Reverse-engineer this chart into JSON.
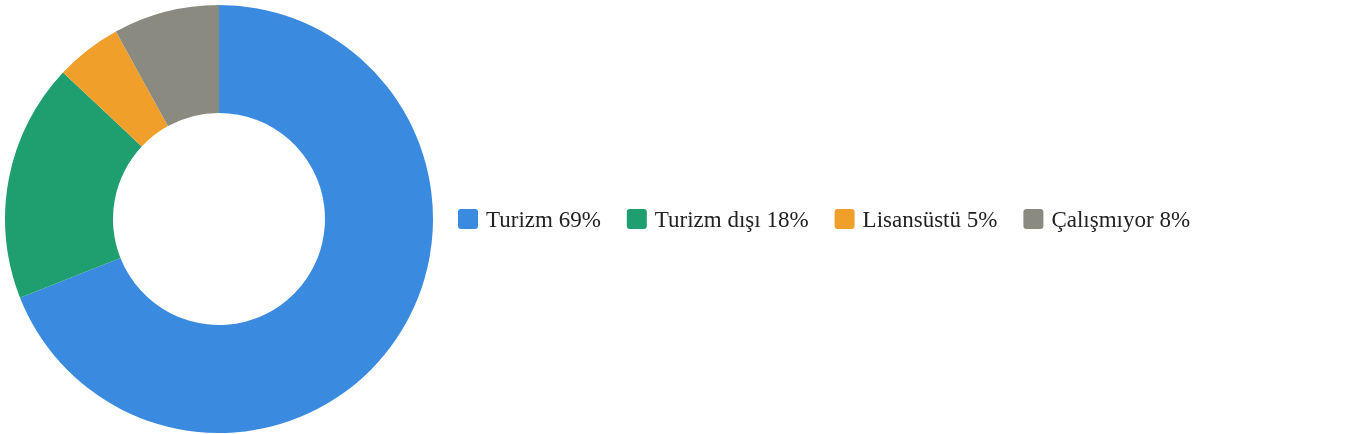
{
  "chart_data": {
    "type": "donut",
    "categories": [
      "Turizm",
      "Turizm dışı",
      "Lisansüstü",
      "Çalışmıyor"
    ],
    "values": [
      69,
      18,
      5,
      8
    ],
    "value_labels": [
      "69%",
      "18%",
      "5%",
      "8%"
    ],
    "colors": [
      "#3a8ae0",
      "#1f9e6f",
      "#f0a02a",
      "#8a8a80"
    ],
    "legend": "right"
  }
}
